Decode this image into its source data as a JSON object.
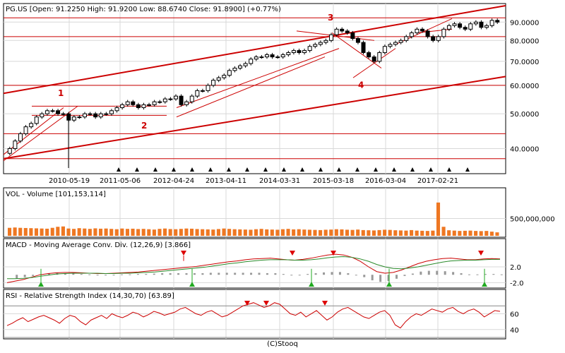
{
  "chart_data": [
    {
      "panel": "price",
      "type": "candlestick",
      "title": "PG.US [Open: 91.2250  High: 91.9200  Low: 88.6740  Close: 91.8900] (+0.77%)",
      "yticks": [
        40,
        50,
        60,
        70,
        80,
        90
      ],
      "ytick_labels": [
        "40.0000",
        "50.0000",
        "60.0000",
        "70.0000",
        "80.0000",
        "90.0000"
      ],
      "ylim": [
        35,
        100
      ],
      "log_scale": true,
      "xticks": [
        "2010-05-19",
        "2011-05-06",
        "2012-04-24",
        "2013-04-11",
        "2014-03-31",
        "2015-03-18",
        "2016-03-04",
        "2017-02-21"
      ],
      "annotations": [
        "1",
        "2",
        "3",
        "4"
      ],
      "candles_close": [
        40,
        42,
        44,
        46,
        47,
        49,
        50,
        51,
        51,
        50,
        50,
        48,
        49,
        49,
        50,
        50,
        49,
        50,
        50,
        51,
        52,
        53,
        54,
        53,
        52,
        53,
        53,
        54,
        54,
        55,
        55,
        56,
        53,
        54,
        56,
        58,
        58,
        60,
        62,
        63,
        64,
        66,
        67,
        68,
        69,
        71,
        72,
        72,
        73,
        72,
        72,
        73,
        74,
        75,
        74,
        75,
        77,
        78,
        79,
        80,
        83,
        86,
        85,
        84,
        81,
        79,
        74,
        72,
        70,
        74,
        77,
        78,
        79,
        80,
        82,
        84,
        86,
        85,
        82,
        80,
        82,
        86,
        88,
        89,
        87,
        86,
        89,
        90,
        87,
        88,
        91,
        90
      ]
    },
    {
      "panel": "volume",
      "type": "bar",
      "title": "VOL - Volume [101,153,114]",
      "yticks": [
        500000000
      ],
      "ytick_labels": [
        "500,000,000"
      ],
      "ylim": [
        0,
        1100000000
      ],
      "values": [
        230,
        240,
        230,
        225,
        220,
        215,
        210,
        205,
        230,
        260,
        270,
        210,
        200,
        220,
        210,
        200,
        215,
        205,
        210,
        200,
        190,
        210,
        200,
        205,
        195,
        200,
        190,
        180,
        200,
        210,
        195,
        190,
        200,
        210,
        205,
        195,
        190,
        185,
        180,
        195,
        210,
        200,
        190,
        185,
        180,
        175,
        190,
        200,
        185,
        180,
        175,
        190,
        200,
        185,
        190,
        180,
        175,
        170,
        165,
        175,
        180,
        190,
        185,
        175,
        170,
        180,
        165,
        160,
        155,
        165,
        175,
        170,
        160,
        155,
        150,
        165,
        150,
        145,
        140,
        150,
        960,
        260,
        160,
        150,
        140,
        145,
        150,
        140,
        135,
        140,
        120,
        100
      ]
    },
    {
      "panel": "macd",
      "type": "line",
      "title": "MACD - Moving Average Conv. Div. (12,26,9) [3.866]",
      "yticks": [
        2.0,
        -2.0
      ],
      "ytick_labels": [
        "2.0",
        "-2.0"
      ],
      "ylim": [
        -3,
        7
      ],
      "series": [
        {
          "values": [
            -2,
            -1.6,
            -1.2,
            -0.6,
            0,
            0.3,
            0.5,
            0.6,
            0.6,
            0.5,
            0.4,
            0.3,
            0.3,
            0.4,
            0.5,
            0.6,
            0.7,
            0.9,
            1.1,
            1.3,
            1.5,
            1.7,
            1.9,
            2.1,
            2.4,
            2.7,
            3,
            3.3,
            3.5,
            3.8,
            4,
            4.1,
            4.2,
            4,
            3.8,
            3.7,
            3.9,
            4.2,
            4.6,
            5,
            5.2,
            5,
            4.4,
            3.4,
            2,
            0.8,
            0.4,
            0.6,
            1.2,
            2,
            2.8,
            3.4,
            3.8,
            4.1,
            4.2,
            4,
            3.8,
            3.8,
            4,
            4.1,
            4
          ]
        },
        {
          "values": [
            -1,
            -1,
            -0.9,
            -0.7,
            -0.4,
            -0.1,
            0.2,
            0.3,
            0.4,
            0.4,
            0.4,
            0.4,
            0.3,
            0.3,
            0.4,
            0.4,
            0.5,
            0.6,
            0.7,
            0.9,
            1.1,
            1.3,
            1.5,
            1.7,
            1.9,
            2.2,
            2.5,
            2.8,
            3,
            3.3,
            3.5,
            3.7,
            3.8,
            3.8,
            3.8,
            3.7,
            3.7,
            3.8,
            4,
            4.3,
            4.5,
            4.6,
            4.4,
            4,
            3.4,
            2.6,
            2,
            1.6,
            1.5,
            1.7,
            2,
            2.4,
            2.8,
            3.2,
            3.5,
            3.6,
            3.7,
            3.7,
            3.8,
            3.9,
            3.9
          ]
        }
      ],
      "histogram": [
        -1,
        -0.6,
        -0.3,
        0.1,
        0.4,
        0.5,
        0.4,
        0.3,
        0.2,
        0.1,
        0,
        -0.1,
        0,
        0.1,
        0.1,
        0.2,
        0.2,
        0.3,
        0.4,
        0.4,
        0.4,
        0.4,
        0.4,
        0.4,
        0.5,
        0.5,
        0.5,
        0.5,
        0.5,
        0.5,
        0.5,
        0.4,
        0.4,
        0.2,
        0,
        0,
        0.2,
        0.4,
        0.6,
        0.7,
        0.7,
        0.4,
        0,
        -0.6,
        -1.4,
        -1.8,
        -1.6,
        -1,
        -0.3,
        0.3,
        0.8,
        1,
        1,
        0.9,
        0.7,
        0.4,
        0.1,
        0.1,
        0.2,
        0.2,
        0.1
      ]
    },
    {
      "panel": "rsi",
      "type": "line",
      "title": "RSI - Relative Strength Index (14,30,70) [63.89]",
      "yticks": [
        60,
        40
      ],
      "ytick_labels": [
        "60",
        "40"
      ],
      "ylim": [
        30,
        80
      ],
      "series": [
        {
          "values": [
            45,
            48,
            52,
            55,
            50,
            53,
            56,
            58,
            55,
            52,
            48,
            54,
            58,
            56,
            50,
            46,
            52,
            55,
            58,
            54,
            60,
            57,
            55,
            58,
            62,
            60,
            56,
            59,
            63,
            61,
            58,
            60,
            62,
            66,
            68,
            64,
            60,
            58,
            62,
            64,
            60,
            56,
            58,
            62,
            66,
            70,
            72,
            74,
            71,
            68,
            70,
            74,
            72,
            66,
            60,
            58,
            62,
            56,
            60,
            64,
            58,
            52,
            56,
            62,
            66,
            68,
            64,
            60,
            56,
            54,
            58,
            62,
            64,
            58,
            46,
            42,
            50,
            56,
            60,
            58,
            62,
            66,
            64,
            62,
            66,
            68,
            63,
            60,
            64,
            66,
            62,
            56,
            60,
            64,
            63
          ]
        }
      ]
    }
  ],
  "footer": "(C)Stooq",
  "colors": {
    "candle": "#000000",
    "trend": "#cc0000",
    "volume": "#ee7722",
    "macd_signal": "#cc0000",
    "macd_line": "#2a8a2a",
    "hist": "#999999",
    "marker_up": "#22aa22",
    "marker_down": "#dd0000"
  }
}
